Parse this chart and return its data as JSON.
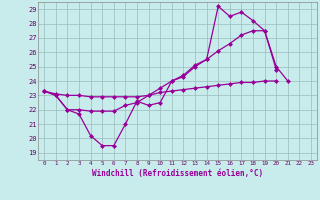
{
  "xlabel": "Windchill (Refroidissement éolien,°C)",
  "bg_color": "#c8ecec",
  "grid_color": "#b0cccc",
  "line_color": "#990099",
  "xlim": [
    -0.5,
    23.5
  ],
  "ylim": [
    18.5,
    29.5
  ],
  "yticks": [
    19,
    20,
    21,
    22,
    23,
    24,
    25,
    26,
    27,
    28,
    29
  ],
  "xticks": [
    0,
    1,
    2,
    3,
    4,
    5,
    6,
    7,
    8,
    9,
    10,
    11,
    12,
    13,
    14,
    15,
    16,
    17,
    18,
    19,
    20,
    21,
    22,
    23
  ],
  "line1_y": [
    23.3,
    23.0,
    22.0,
    21.7,
    20.2,
    19.5,
    19.5,
    21.0,
    22.6,
    22.3,
    22.5,
    24.0,
    24.3,
    25.0,
    25.5,
    29.2,
    28.5,
    28.8,
    28.2,
    27.5,
    25.0,
    24.0,
    null,
    null
  ],
  "line2_y": [
    23.3,
    23.0,
    22.0,
    22.0,
    21.9,
    21.9,
    21.9,
    22.3,
    22.5,
    23.0,
    23.5,
    24.0,
    24.4,
    25.1,
    25.5,
    26.1,
    26.6,
    27.2,
    27.5,
    27.5,
    24.8,
    null,
    null,
    null
  ],
  "line3_y": [
    23.3,
    23.1,
    23.0,
    23.0,
    22.9,
    22.9,
    22.9,
    22.9,
    22.9,
    23.0,
    23.2,
    23.3,
    23.4,
    23.5,
    23.6,
    23.7,
    23.8,
    23.9,
    23.9,
    24.0,
    24.0,
    null,
    null,
    null
  ]
}
